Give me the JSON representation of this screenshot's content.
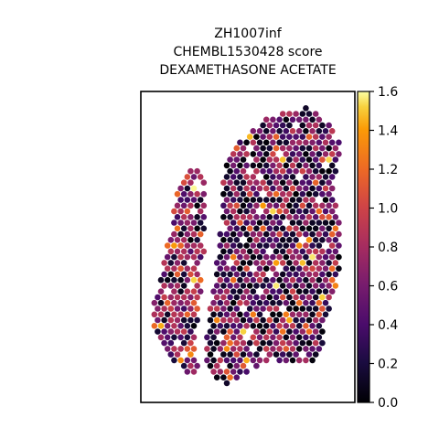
{
  "chart_data": {
    "type": "scatter",
    "title_lines": [
      "ZH1007inf",
      "CHEMBL1530428 score",
      "DEXAMETHASONE ACETATE"
    ],
    "xlabel": "",
    "ylabel": "",
    "colorbar": {
      "cmap": "inferno",
      "range": [
        0.0,
        1.6
      ],
      "ticks": [
        "0.0",
        "0.2",
        "0.4",
        "0.6",
        "0.8",
        "1.0",
        "1.2",
        "1.4",
        "1.6"
      ]
    },
    "grid": false,
    "legend": "none",
    "colors": {
      "low": "#000004",
      "mid_low": "#420a68",
      "mid": "#932667",
      "mid_high": "#dd513a",
      "high": "#fca50a",
      "max": "#fcffa4"
    }
  }
}
